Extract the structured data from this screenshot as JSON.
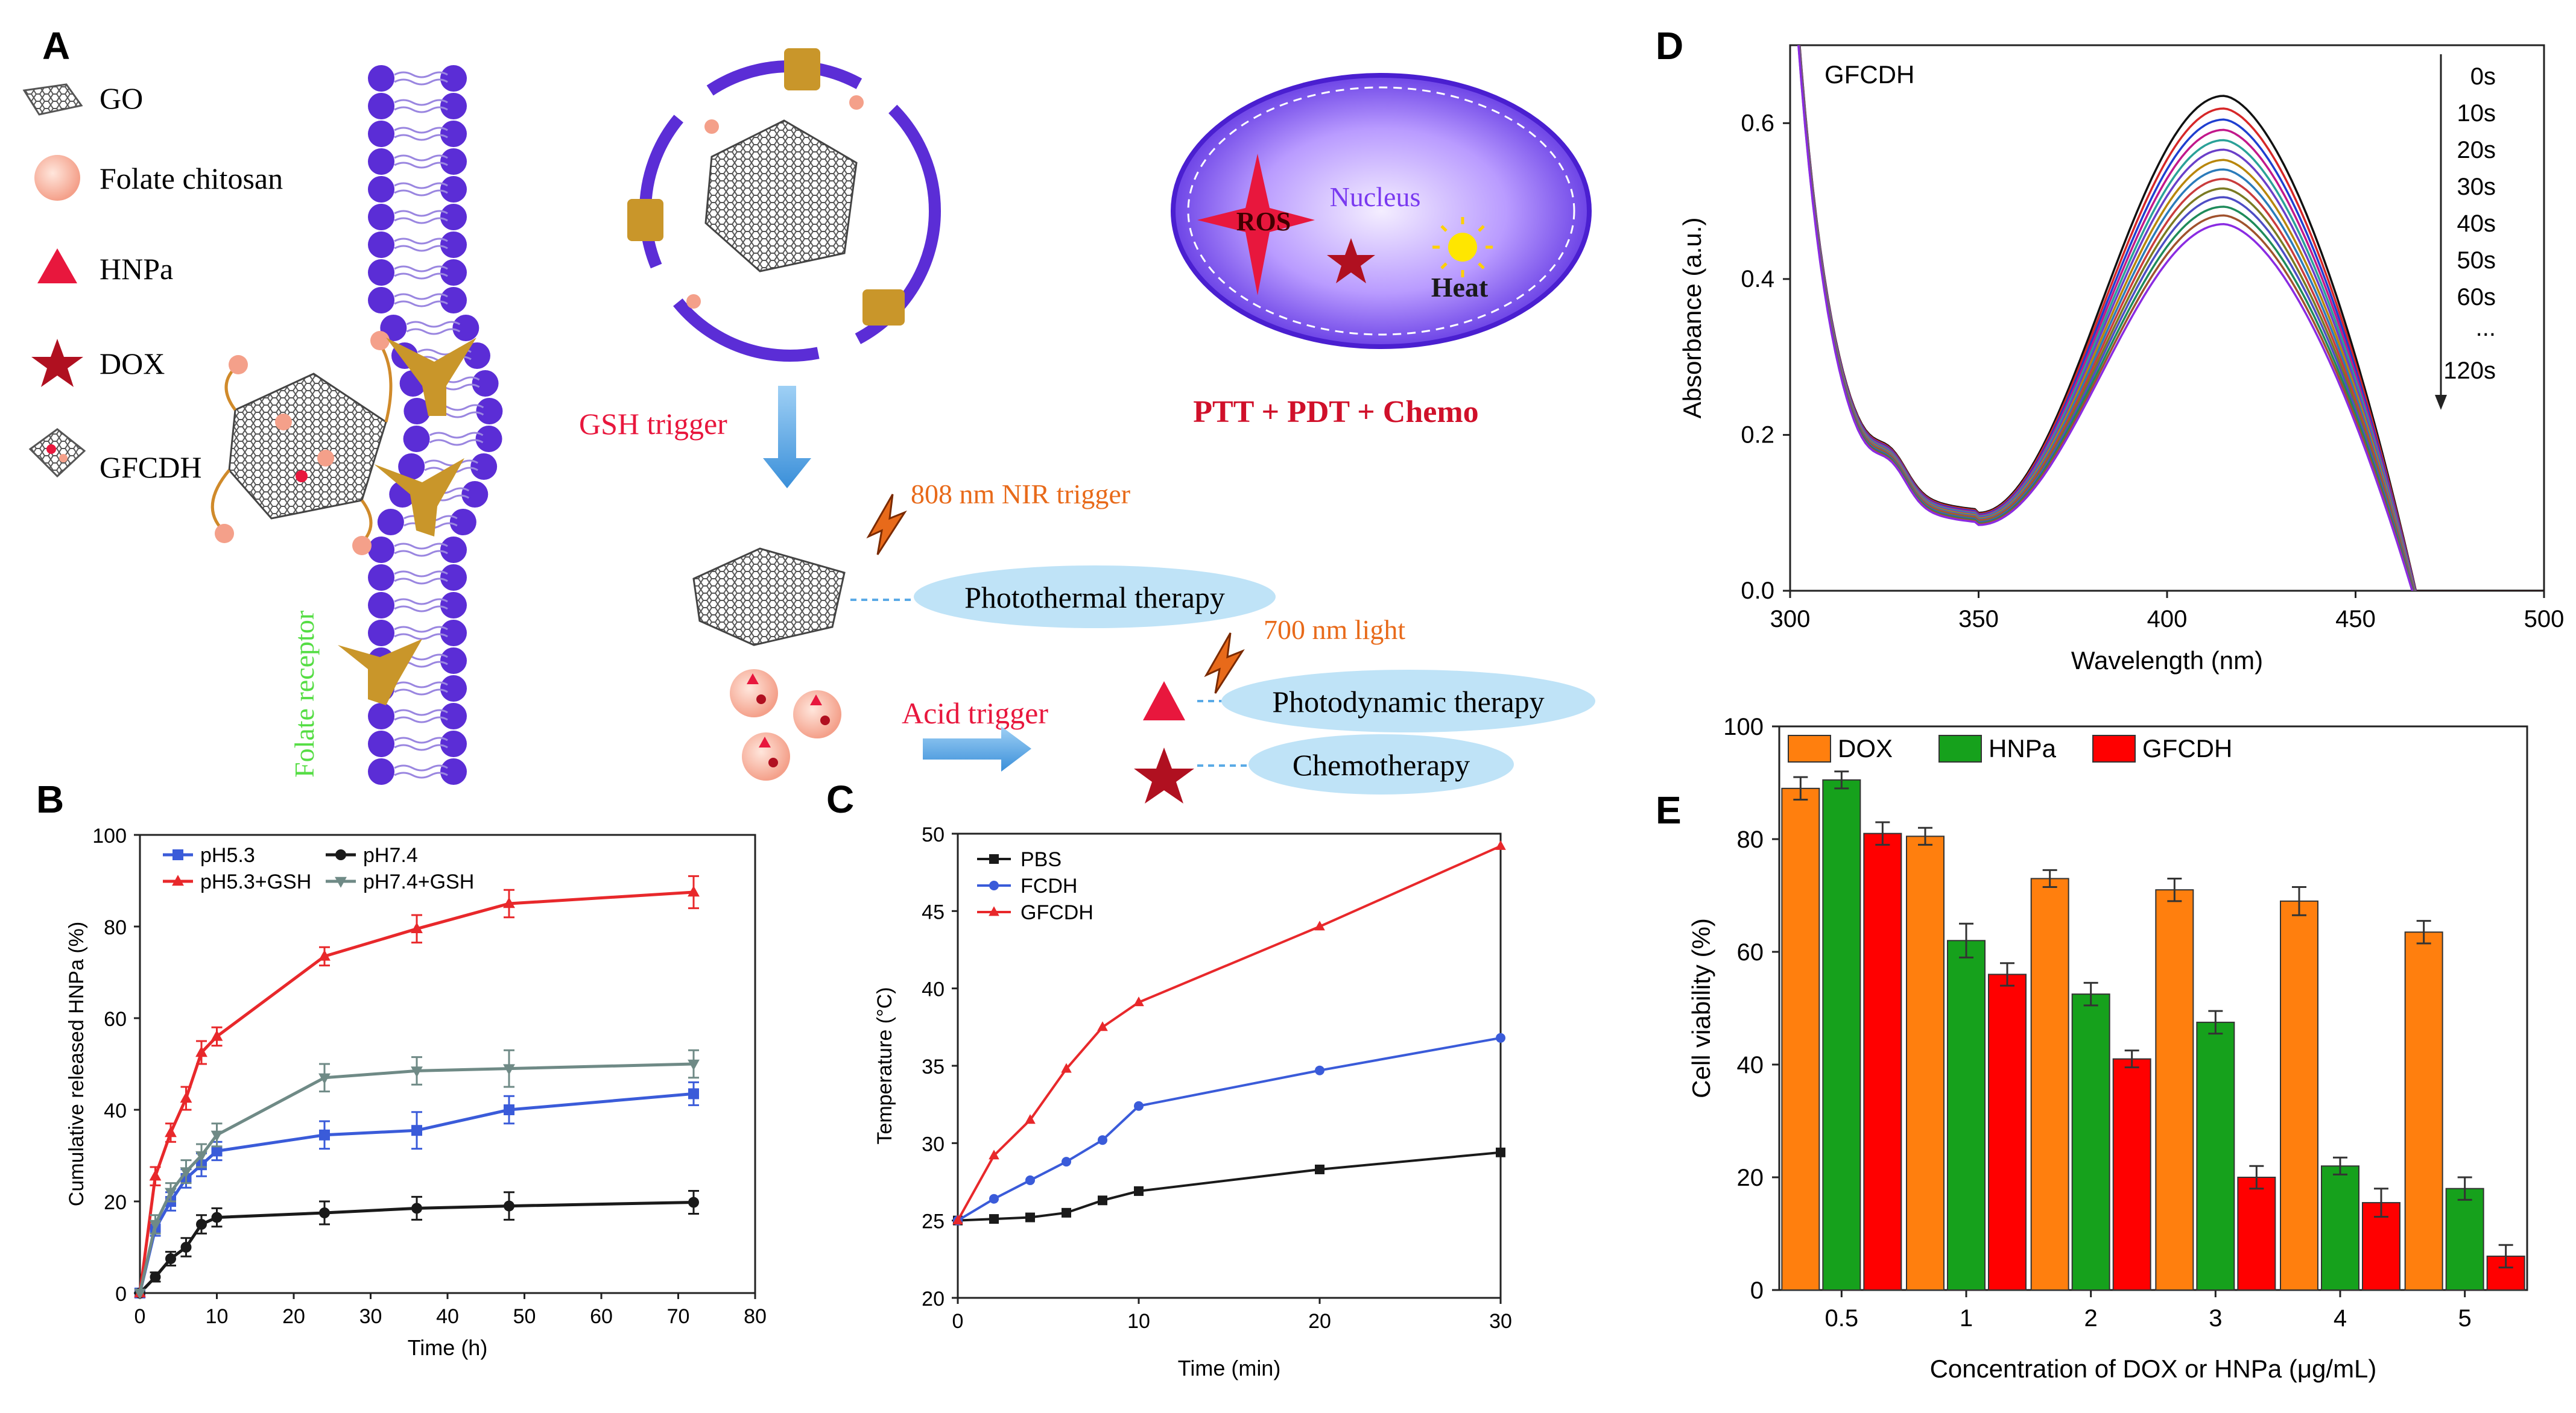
{
  "panels": {
    "A": {
      "label": "A",
      "legend": [
        {
          "name": "go-icon",
          "text": "GO"
        },
        {
          "name": "folate-chitosan-icon",
          "text": "Folate chitosan"
        },
        {
          "name": "hnpa-icon",
          "text": "HNPa"
        },
        {
          "name": "dox-icon",
          "text": "DOX"
        },
        {
          "name": "gfcdh-icon",
          "text": "GFCDH"
        }
      ],
      "folate_receptor": "Folate receptor",
      "gsh_trigger": "GSH trigger",
      "nir_trigger": "808 nm NIR trigger",
      "photothermal": "Photothermal therapy",
      "light_700": "700 nm light",
      "acid_trigger": "Acid trigger",
      "photodynamic": "Photodynamic therapy",
      "chemotherapy": "Chemotherapy",
      "nucleus": "Nucleus",
      "ros": "ROS",
      "heat": "Heat",
      "combo": "PTT + PDT + Chemo"
    },
    "B": {
      "label": "B"
    },
    "C": {
      "label": "C"
    },
    "D": {
      "label": "D"
    },
    "E": {
      "label": "E"
    }
  },
  "colors": {
    "blue": "#3a5bd9",
    "black": "#1a1a1a",
    "red": "#e8282b",
    "gray": "#6f8a86",
    "orange": "#ff7f0e",
    "green": "#16a11c",
    "ered": "#ff0000",
    "membrane": "#5b2dd6",
    "nucleus_edge": "#4a1fd0",
    "nucleus_fill": "#c9b8ff",
    "bubble": "#bfe3f7",
    "arrow": "#5aaae6",
    "trigger": "#e8173d",
    "nir": "#e86a1a",
    "combo": "#d0102a"
  },
  "chart_data": [
    {
      "id": "B",
      "type": "line",
      "title": "",
      "xlabel": "Time (h)",
      "ylabel": "Cumulative released HNPa (%)",
      "xlim": [
        0,
        80
      ],
      "ylim": [
        0,
        100
      ],
      "xticks": [
        0,
        10,
        20,
        30,
        40,
        50,
        60,
        70,
        80
      ],
      "yticks": [
        0,
        20,
        40,
        60,
        80,
        100
      ],
      "legend_position": "top-left",
      "series": [
        {
          "name": "pH5.3",
          "color": "#3a5bd9",
          "marker": "square",
          "x": [
            0,
            2,
            4,
            6,
            8,
            10,
            24,
            36,
            48,
            72
          ],
          "y": [
            0,
            14,
            20,
            25,
            28,
            31,
            34.5,
            35.5,
            40,
            43.5
          ],
          "err": [
            0,
            1.5,
            2,
            2,
            2.5,
            2,
            3,
            4,
            3,
            2.5
          ]
        },
        {
          "name": "pH7.4",
          "color": "#1a1a1a",
          "marker": "circle",
          "x": [
            0,
            2,
            4,
            6,
            8,
            10,
            24,
            36,
            48,
            72
          ],
          "y": [
            0,
            3.5,
            7.5,
            10,
            15,
            16.5,
            17.5,
            18.5,
            19,
            19.8
          ],
          "err": [
            0,
            1,
            1.5,
            2,
            2,
            2,
            2.5,
            2.5,
            3,
            2.5
          ]
        },
        {
          "name": "pH5.3+GSH",
          "color": "#e8282b",
          "marker": "triangle",
          "x": [
            0,
            2,
            4,
            6,
            8,
            10,
            24,
            36,
            48,
            72
          ],
          "y": [
            0,
            25.5,
            35,
            42.5,
            52.5,
            56,
            73.5,
            79.5,
            85,
            87.5
          ],
          "err": [
            0,
            2,
            2,
            2.5,
            2.5,
            2,
            2,
            3,
            3,
            3.5
          ]
        },
        {
          "name": "pH7.4+GSH",
          "color": "#6f8a86",
          "marker": "triangle-down",
          "x": [
            0,
            2,
            4,
            6,
            8,
            10,
            24,
            36,
            48,
            72
          ],
          "y": [
            0,
            15,
            22,
            26.5,
            30,
            34.5,
            47,
            48.5,
            49,
            50
          ],
          "err": [
            0,
            2,
            2,
            2.5,
            2.5,
            2.5,
            3,
            3,
            4,
            3
          ]
        }
      ]
    },
    {
      "id": "C",
      "type": "line",
      "title": "",
      "xlabel": "Time (min)",
      "ylabel": "Temperature (°C)",
      "xlim": [
        0,
        30
      ],
      "ylim": [
        20,
        50
      ],
      "xticks": [
        0,
        10,
        20,
        30
      ],
      "yticks": [
        20,
        25,
        30,
        35,
        40,
        45,
        50
      ],
      "legend_position": "top-left",
      "series": [
        {
          "name": "PBS",
          "color": "#1a1a1a",
          "marker": "square",
          "x": [
            0,
            2,
            4,
            6,
            8,
            10,
            20,
            30
          ],
          "y": [
            25,
            25.1,
            25.2,
            25.5,
            26.3,
            26.9,
            28.3,
            29.4
          ]
        },
        {
          "name": "FCDH",
          "color": "#3a5bd9",
          "marker": "circle",
          "x": [
            0,
            2,
            4,
            6,
            8,
            10,
            20,
            30
          ],
          "y": [
            25,
            26.4,
            27.6,
            28.8,
            30.2,
            32.4,
            34.7,
            36.8
          ]
        },
        {
          "name": "GFCDH",
          "color": "#e8282b",
          "marker": "triangle",
          "x": [
            0,
            2,
            4,
            6,
            8,
            10,
            20,
            30
          ],
          "y": [
            25,
            29.2,
            31.5,
            34.8,
            37.5,
            39.1,
            44,
            49.2
          ]
        }
      ]
    },
    {
      "id": "D",
      "type": "line",
      "title": "GFCDH",
      "xlabel": "Wavelength (nm)",
      "ylabel": "Absorbance (a.u.)",
      "xlim": [
        300,
        500
      ],
      "ylim": [
        0,
        0.7
      ],
      "xticks": [
        300,
        350,
        400,
        450,
        500
      ],
      "yticks": [
        0.0,
        0.2,
        0.4,
        0.6
      ],
      "ytick_labels": [
        "0.0",
        "0.2",
        "0.4",
        "0.6"
      ],
      "time_labels": [
        "0s",
        "10s",
        "20s",
        "30s",
        "40s",
        "50s",
        "60s",
        "...",
        "120s"
      ],
      "peak_values": [
        0.635,
        0.62,
        0.607,
        0.595,
        0.583,
        0.572,
        0.56,
        0.549,
        0.538,
        0.527,
        0.517,
        0.506,
        0.496,
        0.486
      ],
      "curve_colors": [
        "#111111",
        "#d62728",
        "#1f3fd0",
        "#c2188b",
        "#2aa198",
        "#6a3fc9",
        "#b8860b",
        "#2b7bba",
        "#c93c3c",
        "#7a7a22",
        "#4d4dc4",
        "#1e8b5a",
        "#a0522d",
        "#8a2be2"
      ]
    },
    {
      "id": "E",
      "type": "bar",
      "title": "",
      "xlabel": "Concentration of DOX or HNPa (μg/mL)",
      "ylabel": "Cell viability (%)",
      "categories": [
        "0.5",
        "1",
        "2",
        "3",
        "4",
        "5"
      ],
      "ylim": [
        0,
        100
      ],
      "yticks": [
        0,
        20,
        40,
        60,
        80,
        100
      ],
      "legend_position": "top",
      "series": [
        {
          "name": "DOX",
          "color": "#ff7f0e",
          "values": [
            89,
            80.5,
            73,
            71,
            69,
            63.5
          ],
          "err": [
            2,
            1.5,
            1.5,
            2,
            2.5,
            2
          ]
        },
        {
          "name": "HNPa",
          "color": "#16a11c",
          "values": [
            90.5,
            62,
            52.5,
            47.5,
            22,
            18
          ],
          "err": [
            1.5,
            3,
            2,
            2,
            1.5,
            2
          ]
        },
        {
          "name": "GFCDH",
          "color": "#ff0000",
          "values": [
            81,
            56,
            41,
            20,
            15.5,
            6
          ],
          "err": [
            2,
            2,
            1.5,
            2,
            2.5,
            2
          ]
        }
      ]
    }
  ]
}
